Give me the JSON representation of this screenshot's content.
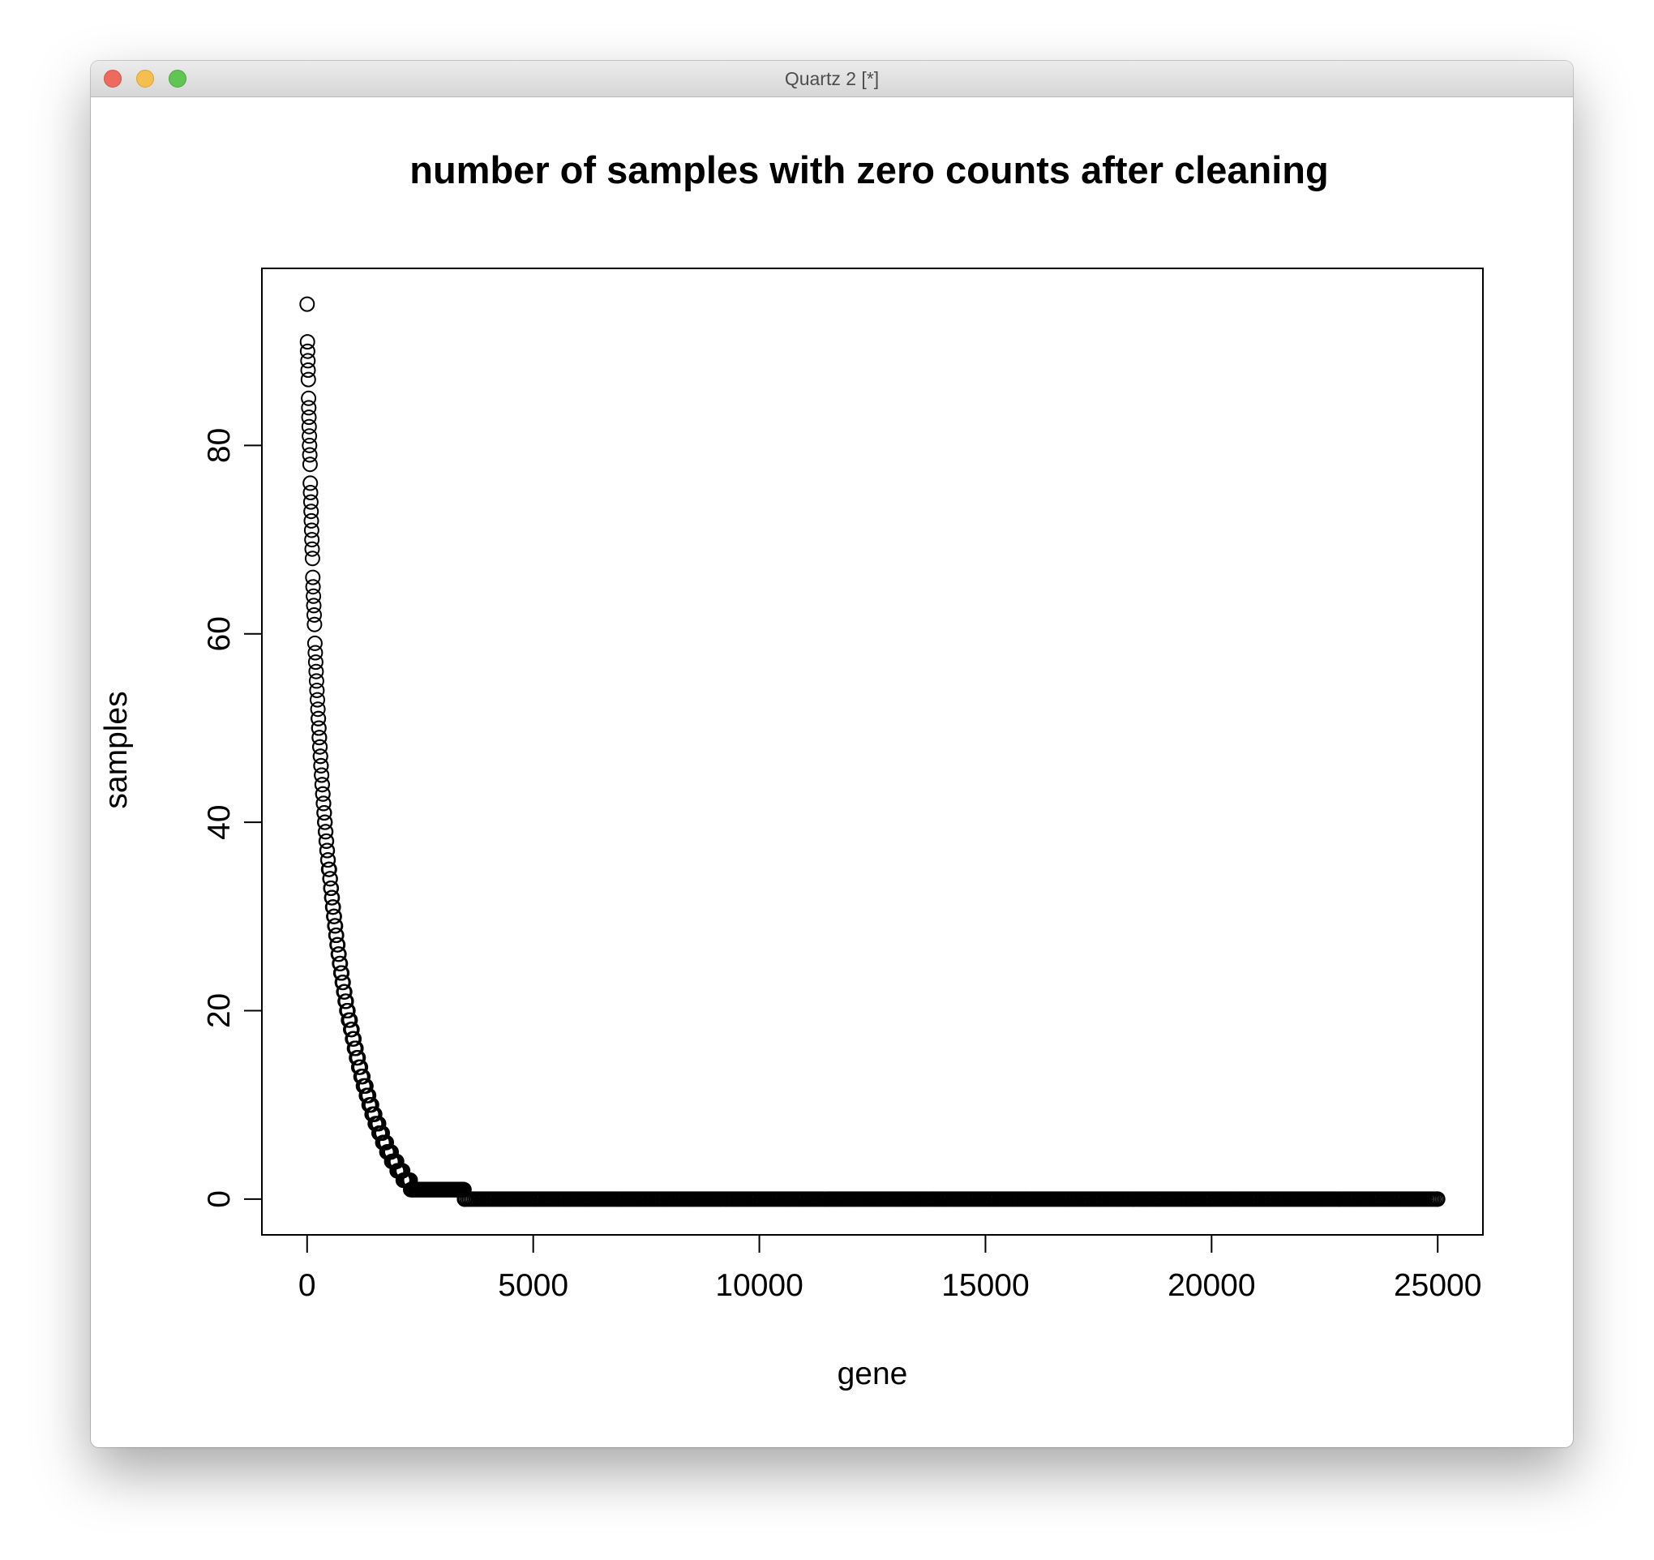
{
  "window": {
    "title": "Quartz 2 [*]",
    "buttons": [
      "close",
      "minimize",
      "zoom"
    ]
  },
  "chart_data": {
    "type": "scatter",
    "title": "number of samples with zero counts after cleaning",
    "xlabel": "gene",
    "ylabel": "samples",
    "xlim": [
      -1000,
      26000
    ],
    "ylim": [
      -3.8,
      98.8
    ],
    "x_ticks": [
      0,
      5000,
      10000,
      15000,
      20000,
      25000
    ],
    "x_tick_labels": [
      "0",
      "5000",
      "10000",
      "15000",
      "20000",
      "25000"
    ],
    "y_ticks": [
      0,
      20,
      40,
      60,
      80
    ],
    "y_tick_labels": [
      "0",
      "20",
      "40",
      "60",
      "80"
    ],
    "marker": "open-circle",
    "grid": false,
    "legend": "none",
    "n_points": 25000,
    "series": [
      {
        "description_of_shape": "steep decay: high values near gene index 0, reaching 0 by about index 3500 and staying 0 to 25000",
        "points": [
          [
            0,
            95
          ],
          [
            8,
            91
          ],
          [
            12,
            90
          ],
          [
            18,
            89
          ],
          [
            22,
            88
          ],
          [
            27,
            87
          ],
          [
            32,
            85
          ],
          [
            36,
            84
          ],
          [
            40,
            83
          ],
          [
            45,
            82
          ],
          [
            50,
            81
          ],
          [
            55,
            80
          ],
          [
            60,
            79
          ],
          [
            65,
            78
          ],
          [
            70,
            76
          ],
          [
            76,
            75
          ],
          [
            82,
            74
          ],
          [
            88,
            73
          ],
          [
            94,
            72
          ],
          [
            100,
            71
          ],
          [
            106,
            70
          ],
          [
            112,
            69
          ],
          [
            118,
            68
          ],
          [
            125,
            66
          ],
          [
            132,
            65
          ],
          [
            140,
            64
          ],
          [
            148,
            63
          ],
          [
            156,
            62
          ],
          [
            164,
            61
          ],
          [
            172,
            59
          ],
          [
            181,
            58
          ],
          [
            190,
            57
          ],
          [
            199,
            56
          ],
          [
            208,
            55
          ],
          [
            218,
            54
          ],
          [
            228,
            53
          ],
          [
            238,
            52
          ],
          [
            249,
            51
          ],
          [
            260,
            50
          ],
          [
            272,
            49
          ],
          [
            284,
            48
          ],
          [
            296,
            47
          ],
          [
            309,
            46
          ],
          [
            322,
            45
          ],
          [
            336,
            44
          ],
          [
            350,
            43
          ],
          [
            365,
            42
          ],
          [
            380,
            41
          ],
          [
            396,
            40
          ],
          [
            412,
            39
          ],
          [
            429,
            38
          ],
          [
            447,
            37
          ],
          [
            465,
            36
          ],
          [
            484,
            35
          ],
          [
            504,
            34
          ],
          [
            525,
            33
          ],
          [
            546,
            32
          ],
          [
            569,
            31
          ],
          [
            592,
            30
          ],
          [
            617,
            29
          ],
          [
            642,
            28
          ],
          [
            669,
            27
          ],
          [
            697,
            26
          ],
          [
            726,
            25
          ],
          [
            757,
            24
          ],
          [
            789,
            23
          ],
          [
            822,
            22
          ],
          [
            857,
            21
          ],
          [
            894,
            20
          ],
          [
            933,
            19
          ],
          [
            974,
            18
          ],
          [
            1017,
            17
          ],
          [
            1062,
            16
          ],
          [
            1110,
            15
          ],
          [
            1160,
            14
          ],
          [
            1214,
            13
          ],
          [
            1271,
            12
          ],
          [
            1331,
            11
          ],
          [
            1396,
            10
          ],
          [
            1466,
            9
          ],
          [
            1541,
            8
          ],
          [
            1623,
            7
          ],
          [
            1712,
            6
          ],
          [
            1810,
            5
          ],
          [
            1920,
            4
          ],
          [
            2045,
            3
          ],
          [
            2190,
            2
          ],
          [
            2380,
            1
          ],
          [
            2650,
            1
          ],
          [
            3450,
            1
          ],
          [
            3500,
            0
          ],
          [
            25000,
            0
          ]
        ]
      }
    ]
  }
}
